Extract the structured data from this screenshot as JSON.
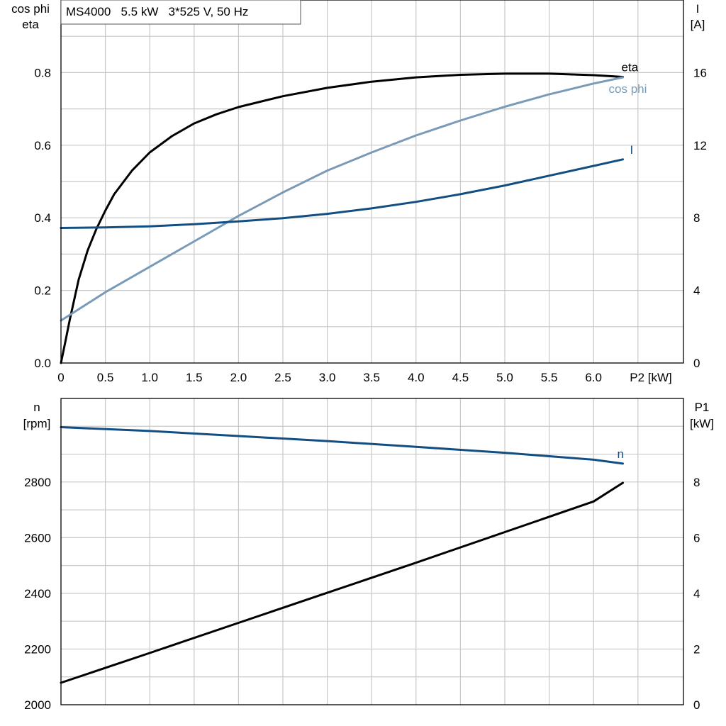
{
  "title_box": "MS4000   5.5 kW   3*525 V, 50 Hz",
  "colors": {
    "eta": "#000000",
    "cos_phi": "#7a9bb8",
    "current": "#134e82",
    "speed": "#134e82",
    "p1": "#000000",
    "grid": "#c8c8c8"
  },
  "chart_data": [
    {
      "type": "line",
      "x_label": "P2 [kW]",
      "x_ticks": [
        "0",
        "0.5",
        "1.0",
        "1.5",
        "2.0",
        "2.5",
        "3.0",
        "3.5",
        "4.0",
        "4.5",
        "5.0",
        "5.5",
        "6.0"
      ],
      "xlim": [
        0,
        7.0
      ],
      "left_axis_label_1": "cos phi",
      "left_axis_label_2": "eta",
      "left_ylim": [
        0,
        1.0
      ],
      "left_ticks": [
        "0.0",
        "0.2",
        "0.4",
        "0.6",
        "0.8"
      ],
      "right_axis_label_1": "I",
      "right_axis_label_2": "[A]",
      "right_ylim": [
        0,
        20
      ],
      "right_ticks": [
        "0",
        "4",
        "8",
        "12",
        "16"
      ],
      "grid": true,
      "series": [
        {
          "name": "eta",
          "axis": "left",
          "x": [
            0,
            0.05,
            0.1,
            0.2,
            0.3,
            0.4,
            0.5,
            0.6,
            0.8,
            1.0,
            1.25,
            1.5,
            1.75,
            2.0,
            2.5,
            3.0,
            3.5,
            4.0,
            4.5,
            5.0,
            5.5,
            6.0,
            6.33
          ],
          "y": [
            0.0,
            0.06,
            0.12,
            0.23,
            0.31,
            0.37,
            0.42,
            0.465,
            0.53,
            0.58,
            0.625,
            0.66,
            0.685,
            0.705,
            0.735,
            0.758,
            0.775,
            0.787,
            0.794,
            0.797,
            0.797,
            0.793,
            0.788
          ]
        },
        {
          "name": "cos phi",
          "axis": "left",
          "x": [
            0,
            0.5,
            1.0,
            1.5,
            2.0,
            2.5,
            3.0,
            3.5,
            4.0,
            4.5,
            5.0,
            5.5,
            6.0,
            6.33
          ],
          "y": [
            0.117,
            0.195,
            0.265,
            0.335,
            0.405,
            0.47,
            0.53,
            0.58,
            0.627,
            0.668,
            0.706,
            0.74,
            0.77,
            0.787
          ]
        },
        {
          "name": "I",
          "axis": "right",
          "x": [
            0,
            0.5,
            1.0,
            1.5,
            2.0,
            2.5,
            3.0,
            3.5,
            4.0,
            4.5,
            5.0,
            5.5,
            6.0,
            6.33
          ],
          "y": [
            7.44,
            7.47,
            7.53,
            7.65,
            7.8,
            7.98,
            8.22,
            8.52,
            8.88,
            9.3,
            9.78,
            10.32,
            10.86,
            11.22
          ]
        }
      ]
    },
    {
      "type": "line",
      "x_label": "",
      "xlim": [
        0,
        7.0
      ],
      "left_axis_label_1": "n",
      "left_axis_label_2": "[rpm]",
      "left_ylim": [
        2000,
        3100
      ],
      "left_ticks": [
        "2000",
        "2200",
        "2400",
        "2600",
        "2800"
      ],
      "right_axis_label_1": "P1",
      "right_axis_label_2": "[kW]",
      "right_ylim": [
        0,
        11
      ],
      "right_ticks": [
        "0",
        "2",
        "4",
        "6",
        "8"
      ],
      "grid": true,
      "series": [
        {
          "name": "n",
          "axis": "left",
          "x": [
            0,
            1.0,
            2.0,
            3.0,
            4.0,
            5.0,
            6.0,
            6.33
          ],
          "y": [
            2997,
            2983,
            2965,
            2947,
            2926,
            2905,
            2880,
            2866
          ]
        },
        {
          "axis": "right",
          "x": [
            0,
            1.0,
            2.0,
            3.0,
            4.0,
            5.0,
            6.0,
            6.33
          ],
          "y": [
            0.79,
            1.86,
            2.94,
            4.02,
            5.1,
            6.2,
            7.3,
            7.97
          ]
        }
      ]
    }
  ]
}
